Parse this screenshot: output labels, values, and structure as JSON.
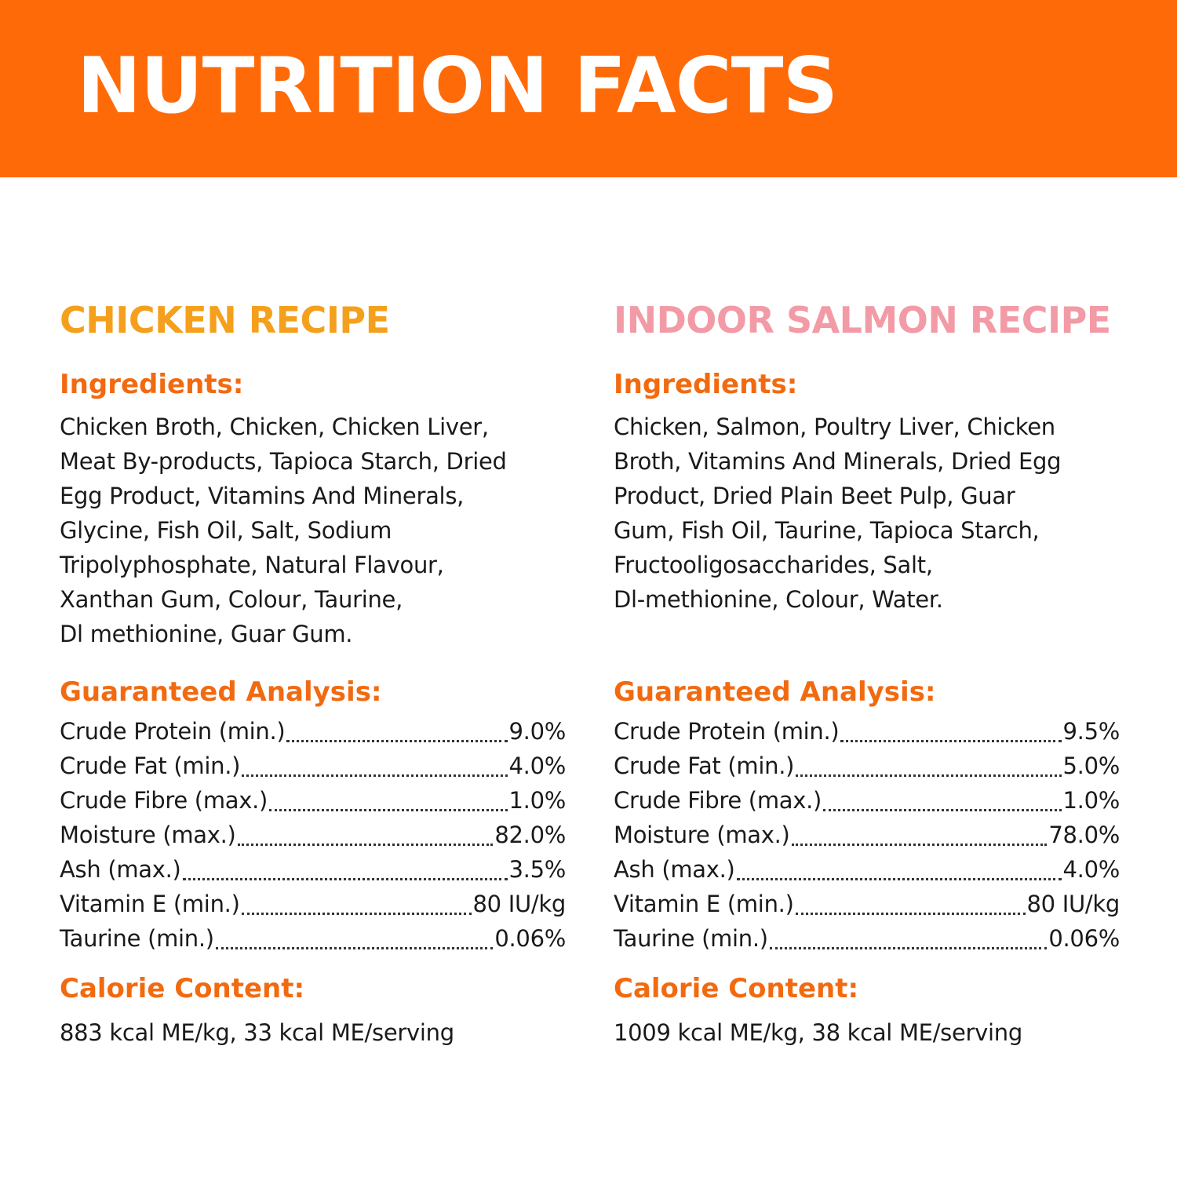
{
  "header": {
    "title": "NUTRITION FACTS"
  },
  "colors": {
    "banner": "#ff6a08",
    "section_heading": "#f26a10",
    "chicken_title": "#f5a01c",
    "salmon_title": "#f29ba6"
  },
  "recipes": [
    {
      "title": "CHICKEN RECIPE",
      "ingredients_heading": "Ingredients:",
      "ingredients_lines": [
        "Chicken Broth, Chicken, Chicken Liver,",
        "Meat By-products, Tapioca Starch, Dried",
        "Egg Product, Vitamins And Minerals,",
        "Glycine, Fish Oil, Salt, Sodium",
        "Tripolyphosphate, Natural Flavour,",
        "Xanthan Gum, Colour, Taurine,",
        "Dl methionine, Guar Gum."
      ],
      "analysis_heading": "Guaranteed Analysis:",
      "analysis": [
        {
          "label": "Crude Protein (min.)",
          "value": "9.0%"
        },
        {
          "label": "Crude Fat (min.)",
          "value": "4.0%"
        },
        {
          "label": "Crude Fibre (max.)",
          "value": "1.0%"
        },
        {
          "label": "Moisture (max.)",
          "value": "82.0%"
        },
        {
          "label": "Ash (max.)",
          "value": "3.5%"
        },
        {
          "label": "Vitamin E (min.)",
          "value": "80 IU/kg"
        },
        {
          "label": "Taurine (min.)",
          "value": "0.06%"
        }
      ],
      "calorie_heading": "Calorie Content:",
      "calorie_text": "883 kcal ME/kg, 33 kcal ME/serving"
    },
    {
      "title": "INDOOR SALMON RECIPE",
      "ingredients_heading": "Ingredients:",
      "ingredients_lines": [
        "Chicken, Salmon, Poultry Liver, Chicken",
        "Broth, Vitamins And Minerals, Dried Egg",
        "Product, Dried Plain Beet Pulp, Guar",
        "Gum, Fish Oil, Taurine, Tapioca Starch,",
        "Fructooligosaccharides, Salt,",
        "Dl-methionine, Colour, Water."
      ],
      "analysis_heading": "Guaranteed Analysis:",
      "analysis": [
        {
          "label": "Crude Protein (min.)",
          "value": "9.5%"
        },
        {
          "label": "Crude Fat (min.)",
          "value": "5.0%"
        },
        {
          "label": "Crude Fibre (max.)",
          "value": "1.0%"
        },
        {
          "label": "Moisture (max.)",
          "value": "78.0%"
        },
        {
          "label": "Ash (max.)",
          "value": "4.0%"
        },
        {
          "label": "Vitamin E (min.)",
          "value": "80 IU/kg"
        },
        {
          "label": "Taurine (min.)",
          "value": "0.06%"
        }
      ],
      "calorie_heading": "Calorie Content:",
      "calorie_text": "1009 kcal ME/kg, 38 kcal ME/serving"
    }
  ]
}
